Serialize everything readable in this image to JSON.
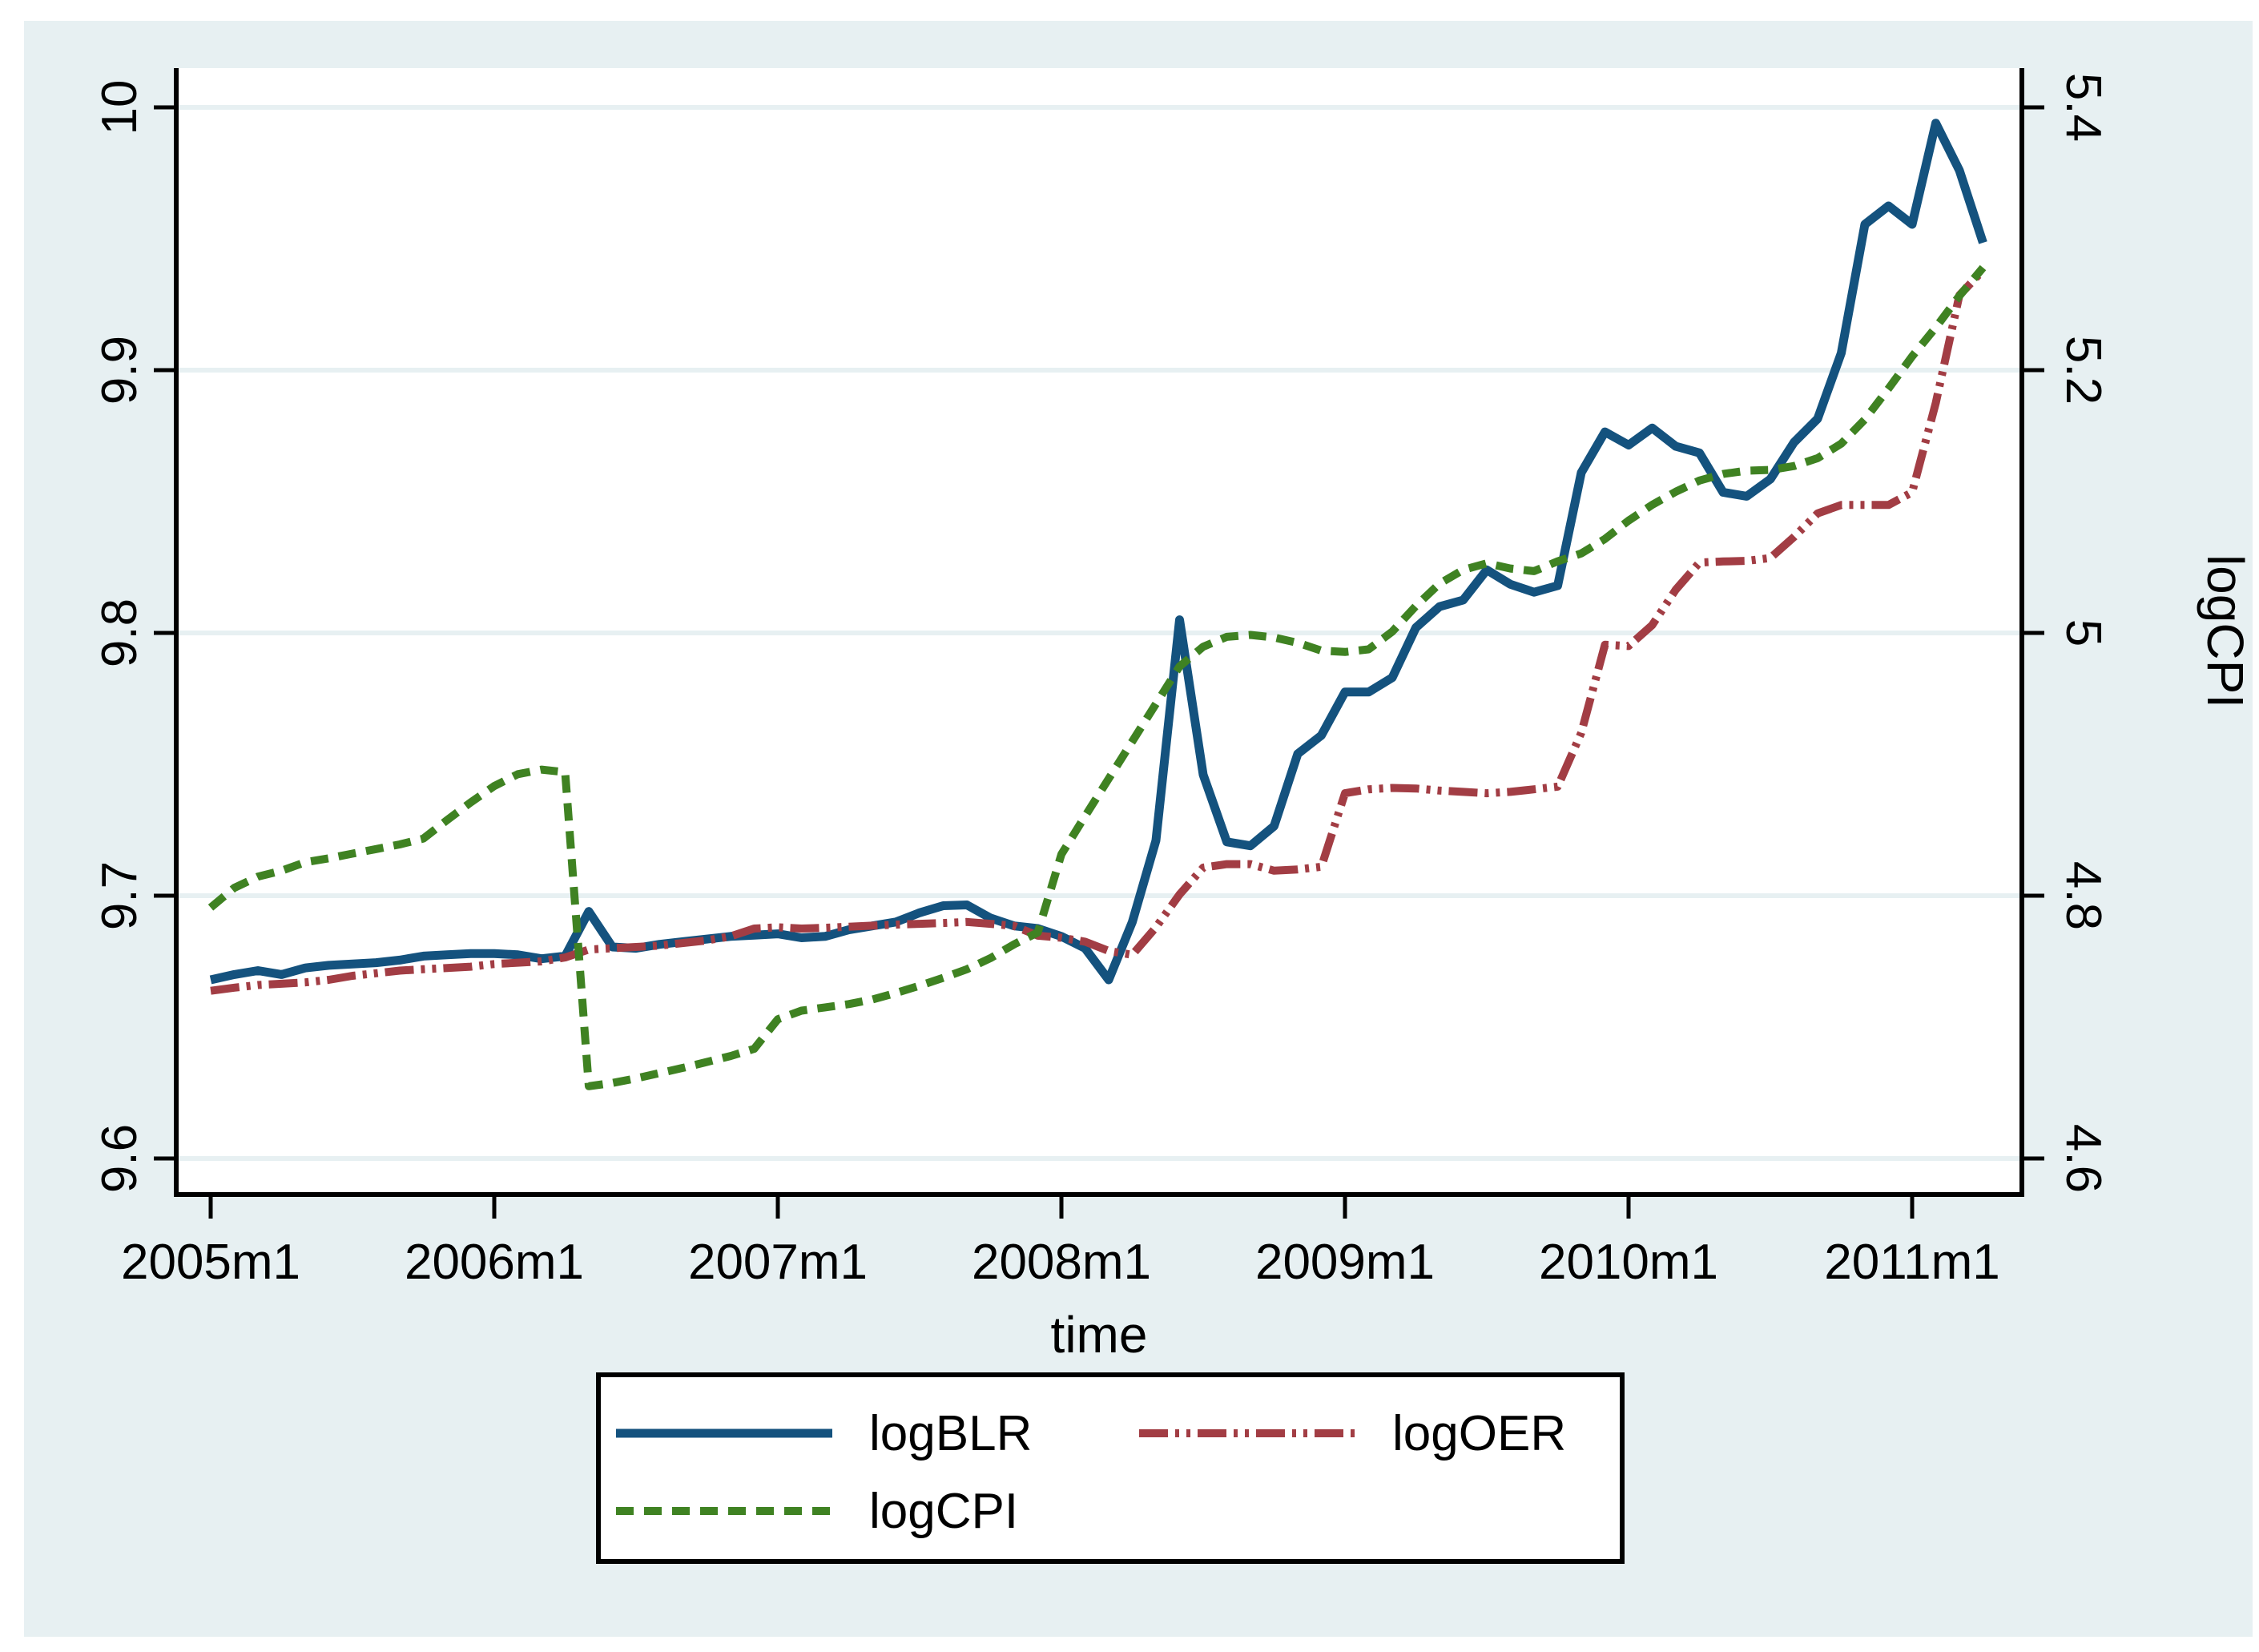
{
  "figure": {
    "background_color": "#e7f0f2",
    "plot_background_color": "#ffffff",
    "axis_color": "#000000",
    "gridline_color": "#e7f0f2"
  },
  "chart_data": {
    "type": "line",
    "title": "",
    "xlabel": "time",
    "right_ylabel": "logCPI",
    "x_start": "2005m1",
    "x_end": "2011m4",
    "frequency": "monthly",
    "grid": true,
    "legend_position": "bottom",
    "x_ticks": [
      {
        "label": "2005m1",
        "month": 0
      },
      {
        "label": "2006m1",
        "month": 12
      },
      {
        "label": "2007m1",
        "month": 24
      },
      {
        "label": "2008m1",
        "month": 36
      },
      {
        "label": "2009m1",
        "month": 48
      },
      {
        "label": "2010m1",
        "month": 60
      },
      {
        "label": "2011m1",
        "month": 72
      }
    ],
    "left_axis": {
      "min": 9.6,
      "max": 10.0,
      "ticks": [
        9.6,
        9.7,
        9.8,
        9.9,
        10
      ],
      "tick_labels": [
        "9.6",
        "9.7",
        "9.8",
        "9.9",
        "10"
      ]
    },
    "right_axis": {
      "min": 4.6,
      "max": 5.4,
      "ticks": [
        4.6,
        4.8,
        5.0,
        5.2,
        5.4
      ],
      "tick_labels": [
        "4.6",
        "4.8",
        "5",
        "5.2",
        "5.4"
      ]
    },
    "months": [
      "2005m1",
      "2005m2",
      "2005m3",
      "2005m4",
      "2005m5",
      "2005m6",
      "2005m7",
      "2005m8",
      "2005m9",
      "2005m10",
      "2005m11",
      "2005m12",
      "2006m1",
      "2006m2",
      "2006m3",
      "2006m4",
      "2006m5",
      "2006m6",
      "2006m7",
      "2006m8",
      "2006m9",
      "2006m10",
      "2006m11",
      "2006m12",
      "2007m1",
      "2007m2",
      "2007m3",
      "2007m4",
      "2007m5",
      "2007m6",
      "2007m7",
      "2007m8",
      "2007m9",
      "2007m10",
      "2007m11",
      "2007m12",
      "2008m1",
      "2008m2",
      "2008m3",
      "2008m4",
      "2008m5",
      "2008m6",
      "2008m7",
      "2008m8",
      "2008m9",
      "2008m10",
      "2008m11",
      "2008m12",
      "2009m1",
      "2009m2",
      "2009m3",
      "2009m4",
      "2009m5",
      "2009m6",
      "2009m7",
      "2009m8",
      "2009m9",
      "2009m10",
      "2009m11",
      "2009m12",
      "2010m1",
      "2010m2",
      "2010m3",
      "2010m4",
      "2010m5",
      "2010m6",
      "2010m7",
      "2010m8",
      "2010m9",
      "2010m10",
      "2010m11",
      "2010m12",
      "2011m1",
      "2011m2",
      "2011m3",
      "2011m4"
    ],
    "series": [
      {
        "name": "logBLR",
        "axis": "left",
        "style": "solid",
        "color": "#14527e",
        "values": [
          9.668,
          9.67,
          9.6715,
          9.67,
          9.6725,
          9.6735,
          9.674,
          9.6745,
          9.6755,
          9.677,
          9.6775,
          9.678,
          9.678,
          9.6775,
          9.676,
          9.677,
          9.694,
          9.6805,
          9.68,
          9.6815,
          9.6825,
          9.6835,
          9.6845,
          9.685,
          9.6855,
          9.684,
          9.6845,
          9.687,
          9.6885,
          9.69,
          9.6935,
          9.6962,
          9.6965,
          9.6915,
          9.6885,
          9.6875,
          9.6845,
          9.68,
          9.668,
          9.69,
          9.721,
          9.805,
          9.746,
          9.7205,
          9.719,
          9.7265,
          9.754,
          9.761,
          9.7775,
          9.7775,
          9.783,
          9.802,
          9.81,
          9.8125,
          9.824,
          9.8185,
          9.8155,
          9.818,
          9.861,
          9.8765,
          9.8715,
          9.878,
          9.871,
          9.8685,
          9.8535,
          9.852,
          9.8585,
          9.8725,
          9.8815,
          9.9065,
          9.9555,
          9.9625,
          9.9555,
          9.994,
          9.976,
          9.9485
        ]
      },
      {
        "name": "logOER",
        "axis": "left",
        "style": "dash-dot-dot",
        "color": "#a23d44",
        "values": [
          9.6638,
          9.665,
          9.666,
          9.6665,
          9.667,
          9.668,
          9.6695,
          9.6705,
          9.6715,
          9.672,
          9.6725,
          9.673,
          9.674,
          9.6745,
          9.675,
          9.6765,
          9.6795,
          9.68,
          9.6805,
          9.681,
          9.682,
          9.683,
          9.6845,
          9.6875,
          9.688,
          9.6875,
          9.6878,
          9.6882,
          9.6886,
          9.689,
          9.6893,
          9.6896,
          9.69,
          9.6893,
          9.6885,
          9.6848,
          9.684,
          9.6825,
          9.679,
          9.6775,
          9.688,
          9.7005,
          9.7107,
          9.712,
          9.712,
          9.7095,
          9.71,
          9.711,
          9.739,
          9.7405,
          9.741,
          9.7408,
          9.74,
          9.7395,
          9.739,
          9.7395,
          9.7405,
          9.7415,
          9.762,
          9.7955,
          9.795,
          9.803,
          9.8165,
          9.8268,
          9.8272,
          9.8274,
          9.8285,
          9.8365,
          9.8455,
          9.8487,
          9.8487,
          9.8487,
          9.8535,
          9.8875,
          9.9285,
          9.938
        ]
      },
      {
        "name": "logCPI",
        "axis": "right",
        "style": "dashed",
        "color": "#3f8222",
        "values": [
          4.791,
          4.806,
          4.8145,
          4.819,
          4.8255,
          4.8285,
          4.832,
          4.8355,
          4.839,
          4.8435,
          4.8575,
          4.871,
          4.8835,
          4.8925,
          4.896,
          4.894,
          4.655,
          4.6575,
          4.661,
          4.665,
          4.669,
          4.6735,
          4.678,
          4.6835,
          4.706,
          4.7125,
          4.715,
          4.7175,
          4.721,
          4.726,
          4.7315,
          4.7375,
          4.744,
          4.7525,
          4.763,
          4.772,
          4.8315,
          4.8605,
          4.889,
          4.9175,
          4.946,
          4.9745,
          4.9895,
          4.997,
          4.9985,
          4.9965,
          4.9925,
          4.9865,
          4.9855,
          4.9875,
          5.001,
          5.0205,
          5.0375,
          5.048,
          5.053,
          5.049,
          5.047,
          5.0545,
          5.0605,
          5.0715,
          5.0855,
          5.0975,
          5.1075,
          5.116,
          5.121,
          5.1235,
          5.124,
          5.127,
          5.133,
          5.144,
          5.1625,
          5.186,
          5.2105,
          5.2325,
          5.2565,
          5.278
        ]
      }
    ],
    "legend": {
      "entries": [
        {
          "label": "logBLR",
          "series": "logBLR"
        },
        {
          "label": "logOER",
          "series": "logOER"
        },
        {
          "label": "logCPI",
          "series": "logCPI"
        }
      ]
    }
  }
}
